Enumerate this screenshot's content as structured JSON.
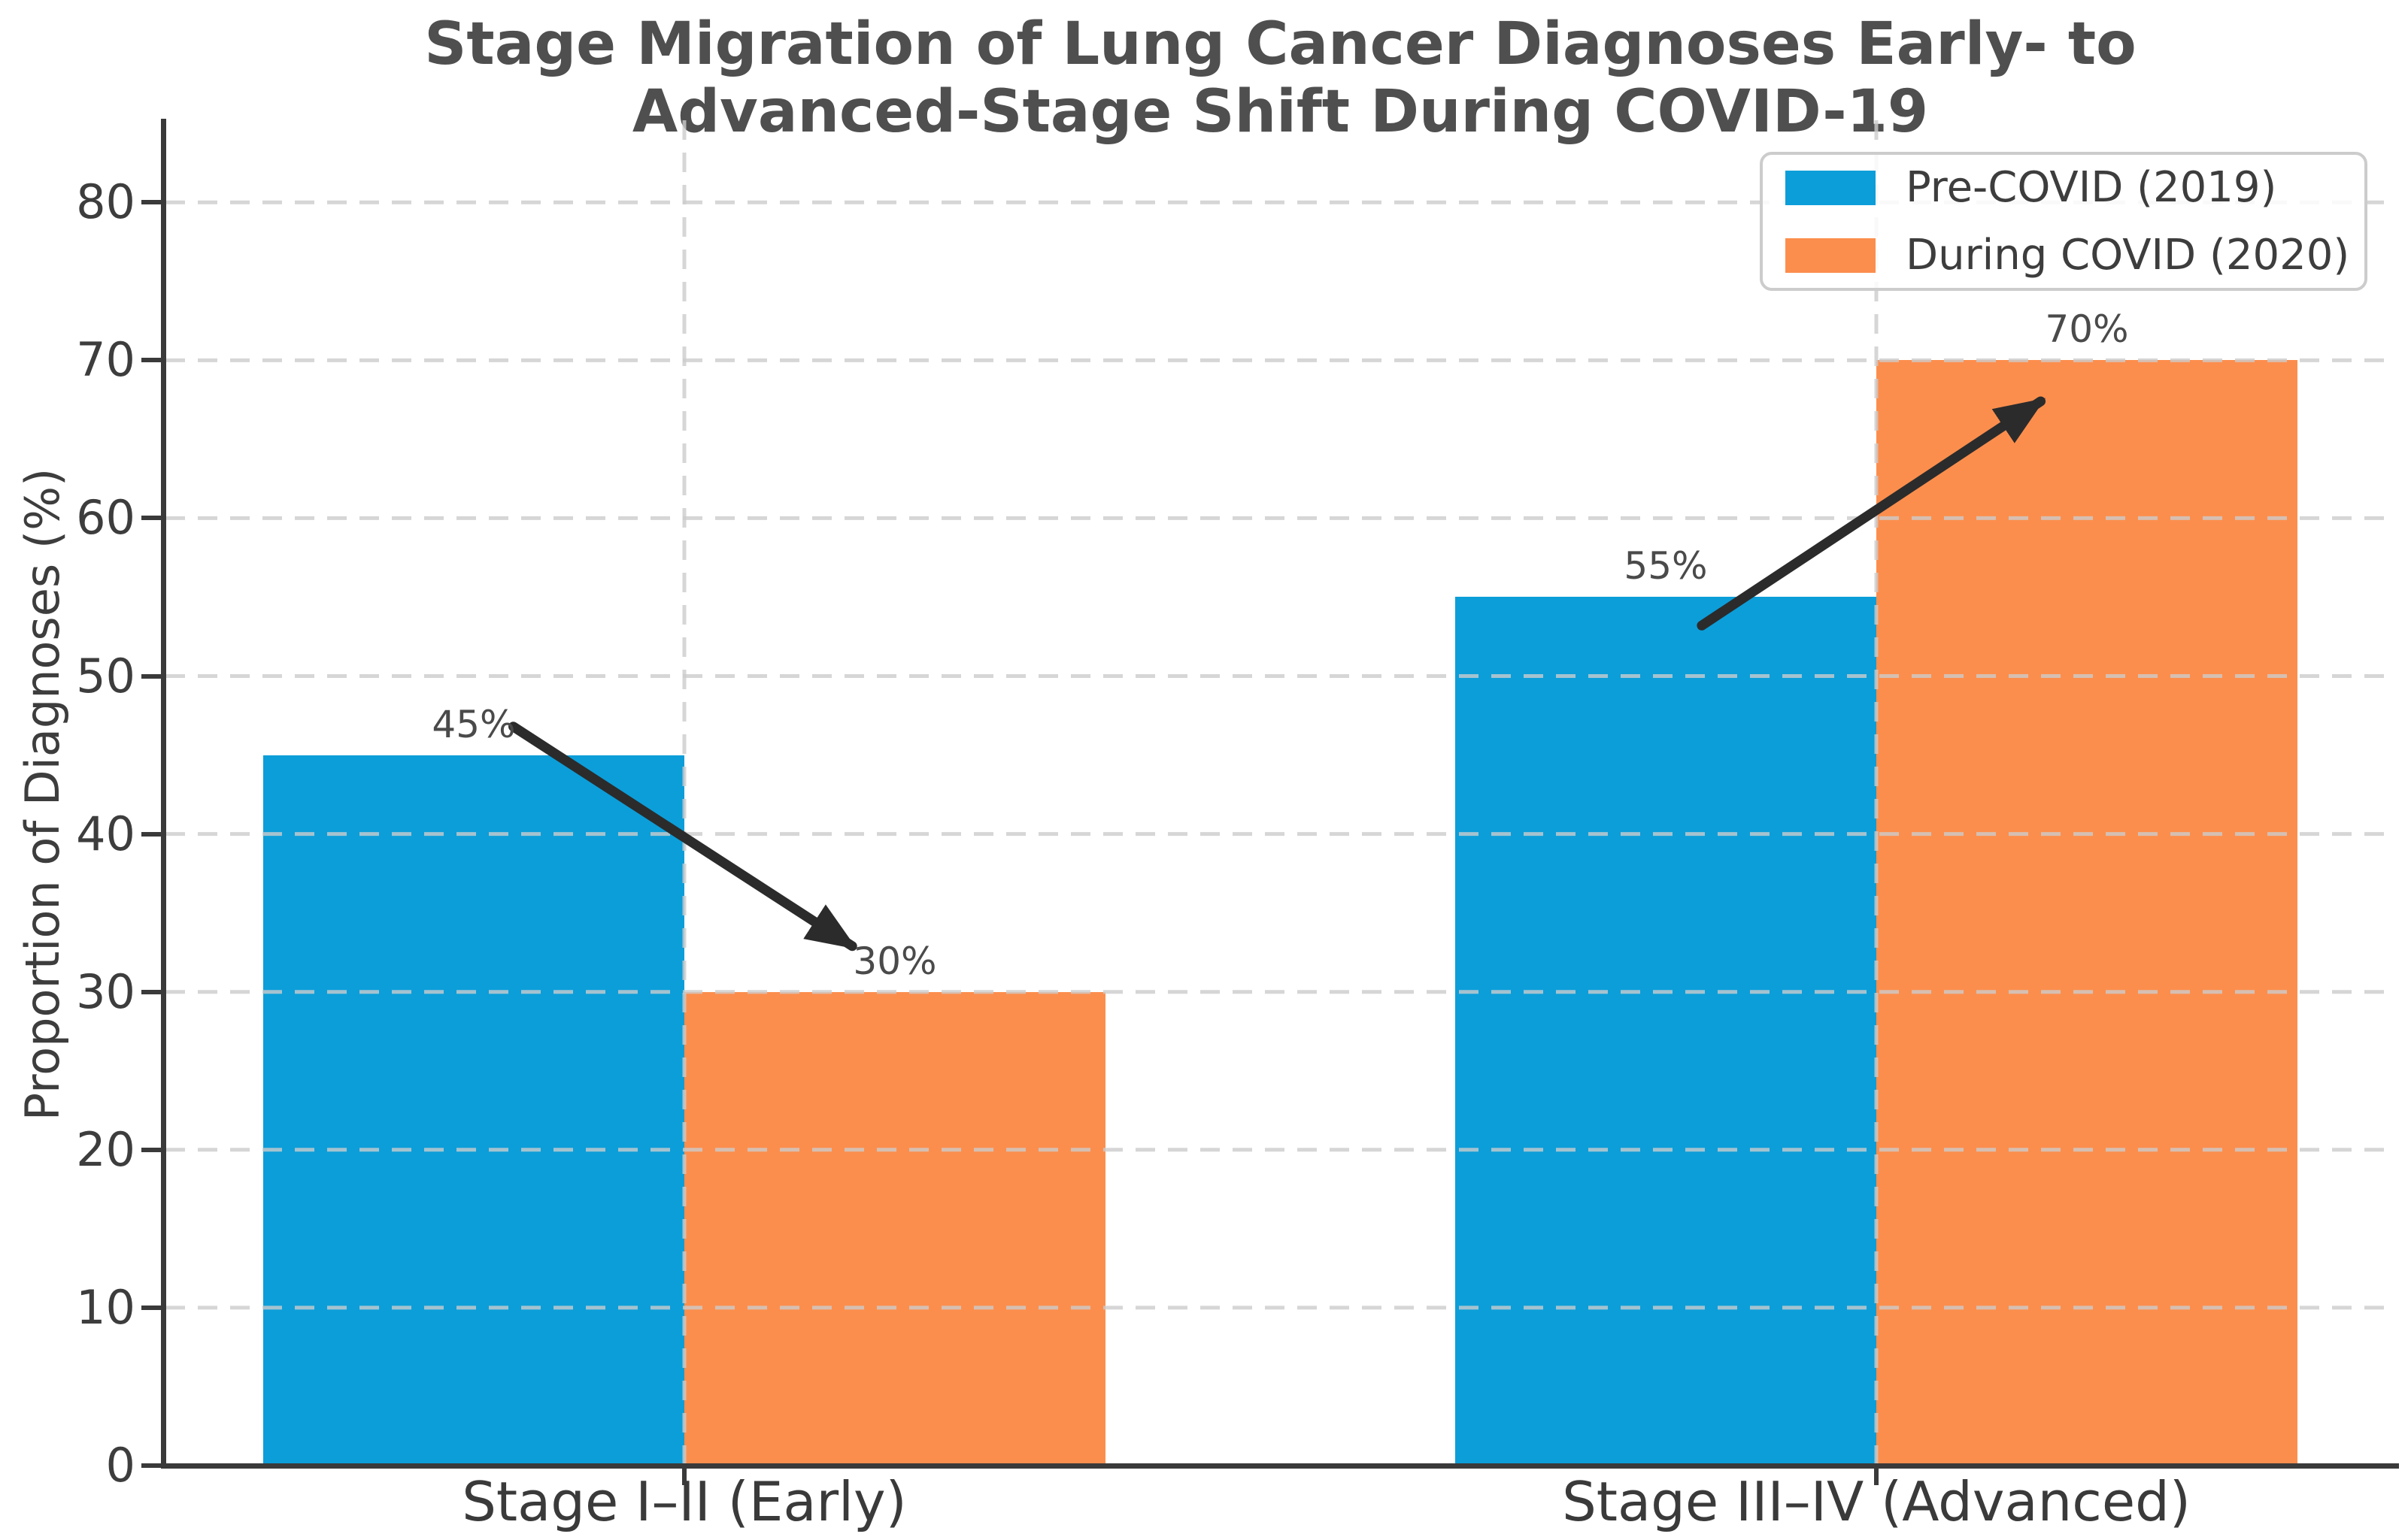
{
  "chart_data": {
    "type": "bar",
    "title": "Stage Migration of Lung Cancer Diagnoses Early- to Advanced-Stage Shift During COVID-19",
    "title_lines": [
      "Stage Migration of Lung Cancer Diagnoses Early- to",
      "Advanced-Stage Shift During COVID-19"
    ],
    "ylabel": "Proportion of Diagnoses (%)",
    "categories": [
      "Stage I–II (Early)",
      "Stage III–IV (Advanced)"
    ],
    "series": [
      {
        "name": "Pre-COVID (2019)",
        "color": "#0c9ed9",
        "values": [
          45,
          55
        ],
        "labels": [
          "45%",
          "55%"
        ]
      },
      {
        "name": "During COVID (2020)",
        "color": "#fc8e4d",
        "values": [
          30,
          70
        ],
        "labels": [
          "30%",
          "70%"
        ]
      }
    ],
    "yticks": [
      "0",
      "10",
      "20",
      "30",
      "40",
      "50",
      "60",
      "70",
      "80"
    ],
    "ylim": [
      0,
      85.2
    ],
    "grid": true,
    "legend_position": "upper right",
    "annotations": [
      {
        "type": "arrow",
        "from_x_frac": 0.156,
        "from_y": 46.8,
        "to_x_frac": 0.308,
        "to_y": 32.9
      },
      {
        "type": "arrow",
        "from_x_frac": 0.689,
        "from_y": 53.2,
        "to_x_frac": 0.841,
        "to_y": 67.4
      }
    ],
    "colors": {
      "grid": "#cccccc",
      "axis": "#3a3a3a",
      "tick_text": "#3d3d3d",
      "title_text": "#4f4f4f",
      "arrow": "#2b2b2b"
    }
  }
}
